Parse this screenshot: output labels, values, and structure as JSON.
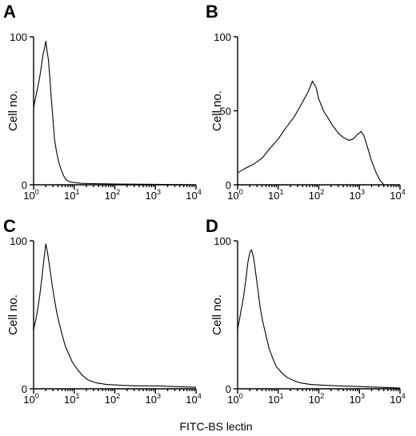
{
  "figure": {
    "x_axis_label": "FITC-BS lectin",
    "y_axis_label": "Cell no."
  },
  "chart_data": [
    {
      "type": "line",
      "panel": "A",
      "xscale": "log",
      "xlim": [
        1,
        10000
      ],
      "ylim": [
        0,
        100
      ],
      "x_ticks": [
        "10^0",
        "10^1",
        "10^2",
        "10^3",
        "10^4"
      ],
      "y_ticks": [
        "0",
        "100"
      ],
      "ylabel": "Cell no.",
      "x": [
        1,
        1.1,
        1.25,
        1.4,
        1.55,
        1.7,
        1.85,
        2.0,
        2.15,
        2.3,
        2.5,
        2.7,
        3.0,
        3.3,
        3.7,
        4.2,
        4.8,
        5.5,
        6.5,
        8,
        10,
        15,
        30,
        100,
        1000,
        10000
      ],
      "y": [
        52,
        58,
        65,
        72,
        80,
        88,
        92,
        97,
        90,
        85,
        73,
        60,
        44,
        30,
        22,
        15,
        10,
        6,
        3,
        2,
        1.5,
        1,
        0.8,
        0.5,
        0.3,
        0
      ]
    },
    {
      "type": "line",
      "panel": "B",
      "xscale": "log",
      "xlim": [
        1,
        10000
      ],
      "ylim": [
        0,
        100
      ],
      "x_ticks": [
        "10^0",
        "10^1",
        "10^2",
        "10^3",
        "10^4"
      ],
      "y_ticks": [
        "0",
        "50",
        "100"
      ],
      "ylabel": "Cell no.",
      "x": [
        1,
        1.5,
        2.5,
        4,
        6,
        10,
        15,
        25,
        40,
        55,
        70,
        85,
        100,
        130,
        170,
        220,
        300,
        400,
        550,
        700,
        900,
        1100,
        1300,
        1600,
        2000,
        2600,
        3200,
        4000
      ],
      "y": [
        8,
        11,
        14,
        18,
        24,
        31,
        38,
        46,
        56,
        63,
        70,
        66,
        58,
        50,
        45,
        40,
        35,
        32,
        30,
        31,
        34,
        36,
        33,
        25,
        16,
        8,
        3,
        0
      ]
    },
    {
      "type": "line",
      "panel": "C",
      "xscale": "log",
      "xlim": [
        1,
        10000
      ],
      "ylim": [
        0,
        100
      ],
      "x_ticks": [
        "10^0",
        "10^1",
        "10^2",
        "10^3",
        "10^4"
      ],
      "y_ticks": [
        "0",
        "100"
      ],
      "ylabel": "Cell no.",
      "x": [
        1,
        1.2,
        1.4,
        1.6,
        1.8,
        2.0,
        2.2,
        2.5,
        2.8,
        3.2,
        3.7,
        4.3,
        5,
        6,
        7.5,
        9,
        12,
        16,
        22,
        35,
        60,
        120,
        300,
        1000,
        3000,
        10000
      ],
      "y": [
        40,
        50,
        62,
        75,
        88,
        98,
        92,
        82,
        72,
        62,
        52,
        44,
        37,
        29,
        23,
        18,
        13,
        9,
        6,
        4,
        3,
        2.5,
        2,
        2,
        1.5,
        1
      ]
    },
    {
      "type": "line",
      "panel": "D",
      "xscale": "log",
      "xlim": [
        1,
        10000
      ],
      "ylim": [
        0,
        100
      ],
      "x_ticks": [
        "10^0",
        "10^1",
        "10^2",
        "10^3",
        "10^4"
      ],
      "y_ticks": [
        "0",
        "100"
      ],
      "ylabel": "Cell no.",
      "x": [
        1,
        1.2,
        1.4,
        1.6,
        1.8,
        2.0,
        2.2,
        2.5,
        2.8,
        3.2,
        3.6,
        4.2,
        5,
        6,
        7.5,
        9,
        12,
        16,
        22,
        35,
        60,
        120,
        300,
        1000,
        3000,
        10000
      ],
      "y": [
        40,
        52,
        62,
        74,
        86,
        92,
        94,
        88,
        78,
        66,
        55,
        45,
        36,
        27,
        20,
        15,
        11,
        8,
        6,
        4,
        3,
        2.5,
        2,
        1.5,
        1,
        0.5
      ]
    }
  ]
}
